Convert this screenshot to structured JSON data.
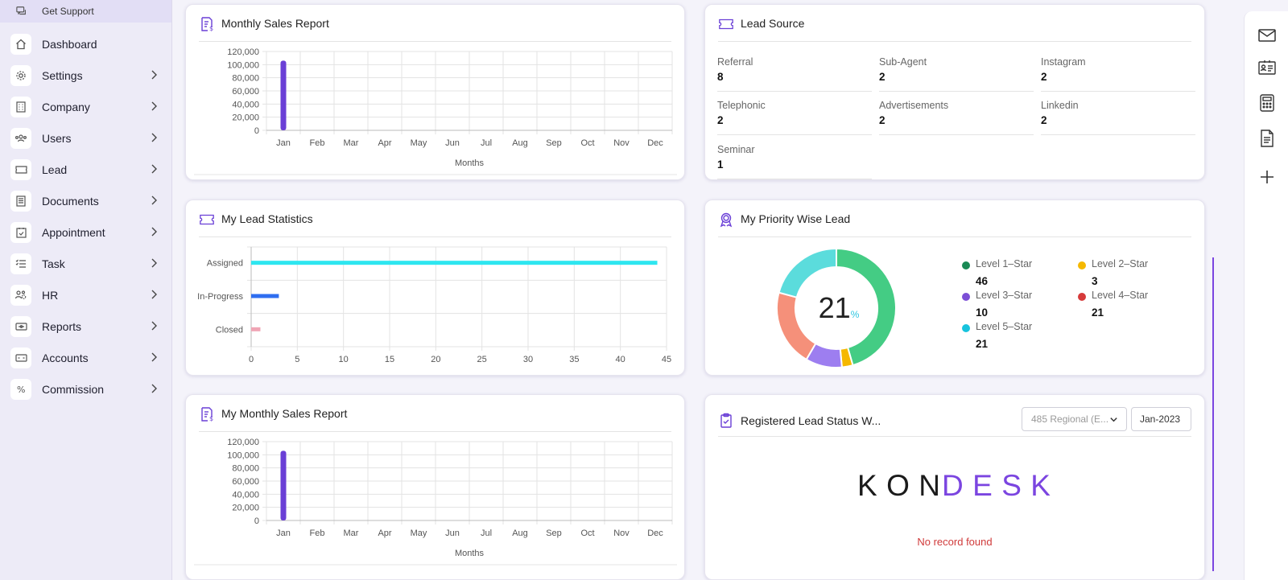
{
  "sidebar": {
    "support_label": "Get Support",
    "items": [
      {
        "label": "Dashboard",
        "icon": "home-icon",
        "chevron": false
      },
      {
        "label": "Settings",
        "icon": "gear-icon",
        "chevron": true
      },
      {
        "label": "Company",
        "icon": "building-icon",
        "chevron": true
      },
      {
        "label": "Users",
        "icon": "users-icon",
        "chevron": true
      },
      {
        "label": "Lead",
        "icon": "ticket-icon",
        "chevron": true
      },
      {
        "label": "Documents",
        "icon": "document-icon",
        "chevron": true
      },
      {
        "label": "Appointment",
        "icon": "calendar-check-icon",
        "chevron": true
      },
      {
        "label": "Task",
        "icon": "task-list-icon",
        "chevron": true
      },
      {
        "label": "HR",
        "icon": "people-gear-icon",
        "chevron": true
      },
      {
        "label": "Reports",
        "icon": "report-icon",
        "chevron": true
      },
      {
        "label": "Accounts",
        "icon": "accounts-icon",
        "chevron": true
      },
      {
        "label": "Commission",
        "icon": "percent-icon",
        "chevron": true
      }
    ]
  },
  "monthly_sales": {
    "title": "Monthly Sales Report",
    "chart_data": {
      "type": "bar",
      "categories": [
        "Jan",
        "Feb",
        "Mar",
        "Apr",
        "May",
        "Jun",
        "Jul",
        "Aug",
        "Sep",
        "Oct",
        "Nov",
        "Dec"
      ],
      "values": [
        106000,
        0,
        0,
        0,
        0,
        0,
        0,
        0,
        0,
        0,
        0,
        0
      ],
      "xlabel": "Months",
      "ylabel": "",
      "ylim": [
        0,
        120000
      ],
      "yticks": [
        "120,000",
        "100,000",
        "80,000",
        "60,000",
        "40,000",
        "20,000",
        "0"
      ],
      "color": "#6a3fd6"
    }
  },
  "lead_source": {
    "title": "Lead Source",
    "items": [
      {
        "label": "Referral",
        "value": "8"
      },
      {
        "label": "Sub-Agent",
        "value": "2"
      },
      {
        "label": "Instagram",
        "value": "2"
      },
      {
        "label": "Telephonic",
        "value": "2"
      },
      {
        "label": "Advertisements",
        "value": "2"
      },
      {
        "label": "Linkedin",
        "value": "2"
      },
      {
        "label": "Seminar",
        "value": "1"
      }
    ]
  },
  "lead_stats": {
    "title": "My Lead Statistics",
    "chart_data": {
      "type": "bar",
      "orientation": "horizontal",
      "categories": [
        "Assigned",
        "In-Progress",
        "Closed"
      ],
      "values": [
        44,
        3,
        1
      ],
      "colors": [
        "#2ee6f0",
        "#2f6ef0",
        "#f0a5b5"
      ],
      "xlim": [
        0,
        45
      ],
      "xticks": [
        "0",
        "5",
        "10",
        "15",
        "20",
        "25",
        "30",
        "35",
        "40",
        "45"
      ]
    }
  },
  "priority": {
    "title": "My Priority Wise Lead",
    "center_value": "21",
    "center_unit": "%",
    "chart_data": {
      "type": "pie",
      "variant": "donut",
      "labels": [
        "Level 1–Star",
        "Level 2–Star",
        "Level 3–Star",
        "Level 4–Star",
        "Level 5–Star"
      ],
      "values": [
        46,
        3,
        10,
        21,
        21
      ],
      "colors": [
        "#44cc84",
        "#f5b800",
        "#9d7ef0",
        "#f5907a",
        "#5bdcdc"
      ],
      "legend_colors": [
        "#1a8a55",
        "#f5b800",
        "#7c4fd6",
        "#d63a3a",
        "#17c3dd"
      ]
    }
  },
  "my_monthly_sales": {
    "title": "My Monthly Sales Report",
    "chart_data": {
      "type": "bar",
      "categories": [
        "Jan",
        "Feb",
        "Mar",
        "Apr",
        "May",
        "Jun",
        "Jul",
        "Aug",
        "Sep",
        "Oct",
        "Nov",
        "Dec"
      ],
      "values": [
        106000,
        0,
        0,
        0,
        0,
        0,
        0,
        0,
        0,
        0,
        0,
        0
      ],
      "xlabel": "Months",
      "ylabel": "",
      "ylim": [
        0,
        120000
      ],
      "yticks": [
        "120,000",
        "100,000",
        "80,000",
        "60,000",
        "40,000",
        "20,000",
        "0"
      ],
      "color": "#6a3fd6"
    }
  },
  "registered": {
    "title": "Registered Lead Status W...",
    "branch_select": "485 Regional (E...",
    "month_select": "Jan-2023",
    "logo_left": "K O N",
    "logo_right": "D E S K",
    "empty_text": "No record found"
  },
  "colors": {
    "accent": "#6a3fd6",
    "logo_dark": "#1b1b1b",
    "logo_purple": "#7b45e0",
    "empty_red": "#d03a3a"
  },
  "right_rail": [
    "mail-icon",
    "contact-card-icon",
    "calculator-icon",
    "document-icon",
    "plus-icon"
  ]
}
